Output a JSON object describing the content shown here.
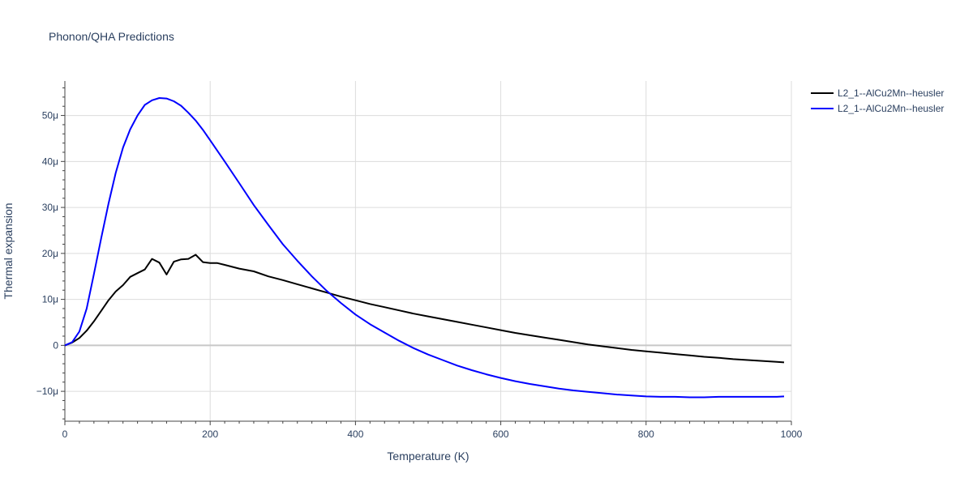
{
  "chart_data": {
    "type": "line",
    "title": "Phonon/QHA Predictions",
    "xlabel": "Temperature (K)",
    "ylabel": "Thermal expansion",
    "xlim": [
      0,
      1000
    ],
    "ylim": [
      -16.5,
      57.5
    ],
    "x_ticks": [
      0,
      200,
      400,
      600,
      800,
      1000
    ],
    "x_tick_labels": [
      "0",
      "200",
      "400",
      "600",
      "800",
      "1000"
    ],
    "y_ticks": [
      -10,
      0,
      10,
      20,
      30,
      40,
      50
    ],
    "y_tick_labels": [
      "−10μ",
      "0",
      "10μ",
      "20μ",
      "30μ",
      "40μ",
      "50μ"
    ],
    "y_unit_note": "values in units of 1e-6",
    "grid": true,
    "legend_position": "top-right",
    "series": [
      {
        "name": "L2_1--AlCu2Mn--heusler",
        "color": "#000000",
        "x": [
          0,
          10,
          20,
          30,
          40,
          50,
          60,
          70,
          80,
          90,
          100,
          110,
          120,
          130,
          140,
          150,
          160,
          170,
          180,
          190,
          200,
          210,
          220,
          240,
          260,
          280,
          300,
          320,
          340,
          360,
          380,
          400,
          420,
          440,
          460,
          480,
          500,
          520,
          540,
          560,
          580,
          600,
          620,
          640,
          660,
          680,
          700,
          720,
          740,
          760,
          780,
          800,
          820,
          840,
          860,
          880,
          900,
          920,
          940,
          960,
          980,
          990
        ],
        "y": [
          0,
          0.6,
          1.6,
          3.2,
          5.2,
          7.5,
          9.8,
          11.7,
          13.1,
          14.9,
          15.7,
          16.5,
          18.8,
          18.0,
          15.4,
          18.2,
          18.7,
          18.8,
          19.7,
          18.1,
          17.9,
          17.9,
          17.5,
          16.7,
          16.1,
          15.0,
          14.2,
          13.3,
          12.4,
          11.5,
          10.6,
          9.8,
          9.0,
          8.3,
          7.6,
          6.9,
          6.3,
          5.7,
          5.1,
          4.5,
          3.9,
          3.3,
          2.7,
          2.2,
          1.7,
          1.2,
          0.7,
          0.2,
          -0.2,
          -0.6,
          -1.0,
          -1.3,
          -1.6,
          -1.9,
          -2.2,
          -2.5,
          -2.7,
          -3.0,
          -3.2,
          -3.4,
          -3.6,
          -3.7
        ]
      },
      {
        "name": "L2_1--AlCu2Mn--heusler",
        "color": "#0000ff",
        "x": [
          0,
          10,
          20,
          30,
          40,
          50,
          60,
          70,
          80,
          90,
          100,
          110,
          120,
          130,
          140,
          150,
          160,
          170,
          180,
          190,
          200,
          220,
          240,
          260,
          280,
          300,
          320,
          340,
          360,
          380,
          400,
          420,
          440,
          460,
          480,
          500,
          520,
          540,
          560,
          580,
          600,
          620,
          640,
          660,
          680,
          700,
          720,
          740,
          760,
          780,
          800,
          820,
          840,
          860,
          880,
          900,
          920,
          940,
          960,
          980,
          990
        ],
        "y": [
          0,
          0.7,
          3.0,
          8.0,
          15.5,
          23.3,
          30.8,
          37.5,
          43.0,
          47.0,
          50.0,
          52.3,
          53.3,
          53.8,
          53.7,
          53.1,
          52.1,
          50.6,
          48.9,
          46.9,
          44.6,
          40.0,
          35.3,
          30.5,
          26.2,
          22.0,
          18.4,
          15.0,
          11.9,
          9.2,
          6.7,
          4.6,
          2.8,
          1.0,
          -0.6,
          -2.0,
          -3.2,
          -4.4,
          -5.4,
          -6.3,
          -7.1,
          -7.8,
          -8.4,
          -8.9,
          -9.4,
          -9.8,
          -10.1,
          -10.4,
          -10.7,
          -10.9,
          -11.1,
          -11.2,
          -11.2,
          -11.3,
          -11.3,
          -11.2,
          -11.2,
          -11.2,
          -11.2,
          -11.2,
          -11.1
        ]
      }
    ]
  }
}
